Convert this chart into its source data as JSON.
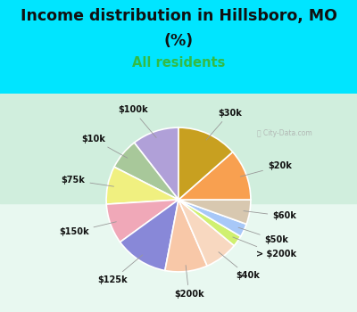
{
  "title_line1": "Income distribution in Hillsboro, MO",
  "title_line2": "(%)",
  "subtitle": "All residents",
  "title_color": "#111111",
  "subtitle_color": "#33bb44",
  "top_bg_color": "#00e5ff",
  "chart_bg_top": "#d8f0e0",
  "chart_bg_bottom": "#e8faf0",
  "labels": [
    "$100k",
    "$10k",
    "$75k",
    "$150k",
    "$125k",
    "$200k",
    "$40k",
    "> $200k",
    "$50k",
    "$60k",
    "$20k",
    "$30k"
  ],
  "values": [
    10.5,
    7.0,
    8.5,
    9.0,
    12.0,
    9.5,
    7.5,
    2.5,
    3.0,
    5.5,
    11.5,
    13.5
  ],
  "colors": [
    "#b0a0d8",
    "#a8c89a",
    "#f0f080",
    "#f0a8b8",
    "#8888d8",
    "#f8c8a8",
    "#f8d8c0",
    "#d0f070",
    "#a8c8f8",
    "#d8c8b0",
    "#f8a050",
    "#c8a020"
  ],
  "startangle": 90,
  "label_fontsize": 7.0,
  "title_fontsize": 12.5,
  "subtitle_fontsize": 10.5,
  "watermark": "City-Data.com"
}
